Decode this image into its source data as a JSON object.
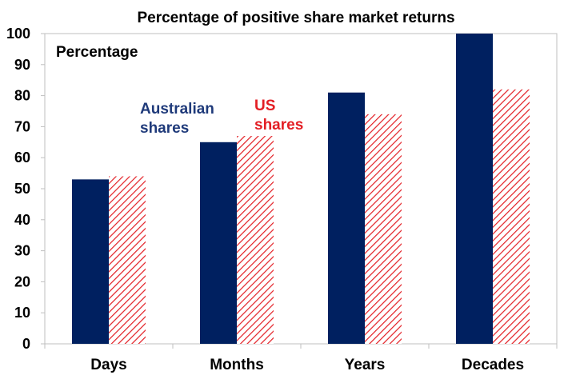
{
  "chart_data": {
    "type": "bar",
    "title": "Percentage of positive share market returns",
    "ylabel": "Percentage",
    "xlabel": "",
    "categories": [
      "Days",
      "Months",
      "Years",
      "Decades"
    ],
    "series": [
      {
        "name": "Australian shares",
        "name_lines": [
          "Australian",
          "shares"
        ],
        "values": [
          53,
          65,
          81,
          100
        ],
        "color": "#002060",
        "pattern": "solid"
      },
      {
        "name": "US shares",
        "name_lines": [
          "US",
          "shares"
        ],
        "values": [
          54,
          67,
          74,
          82
        ],
        "color": "#e31e24",
        "pattern": "diagonal-hatch"
      }
    ],
    "ylim": [
      0,
      100
    ],
    "yticks": [
      0,
      10,
      20,
      30,
      40,
      50,
      60,
      70,
      80,
      90,
      100
    ],
    "grid": false,
    "legend_placement": "inline-top-left"
  }
}
